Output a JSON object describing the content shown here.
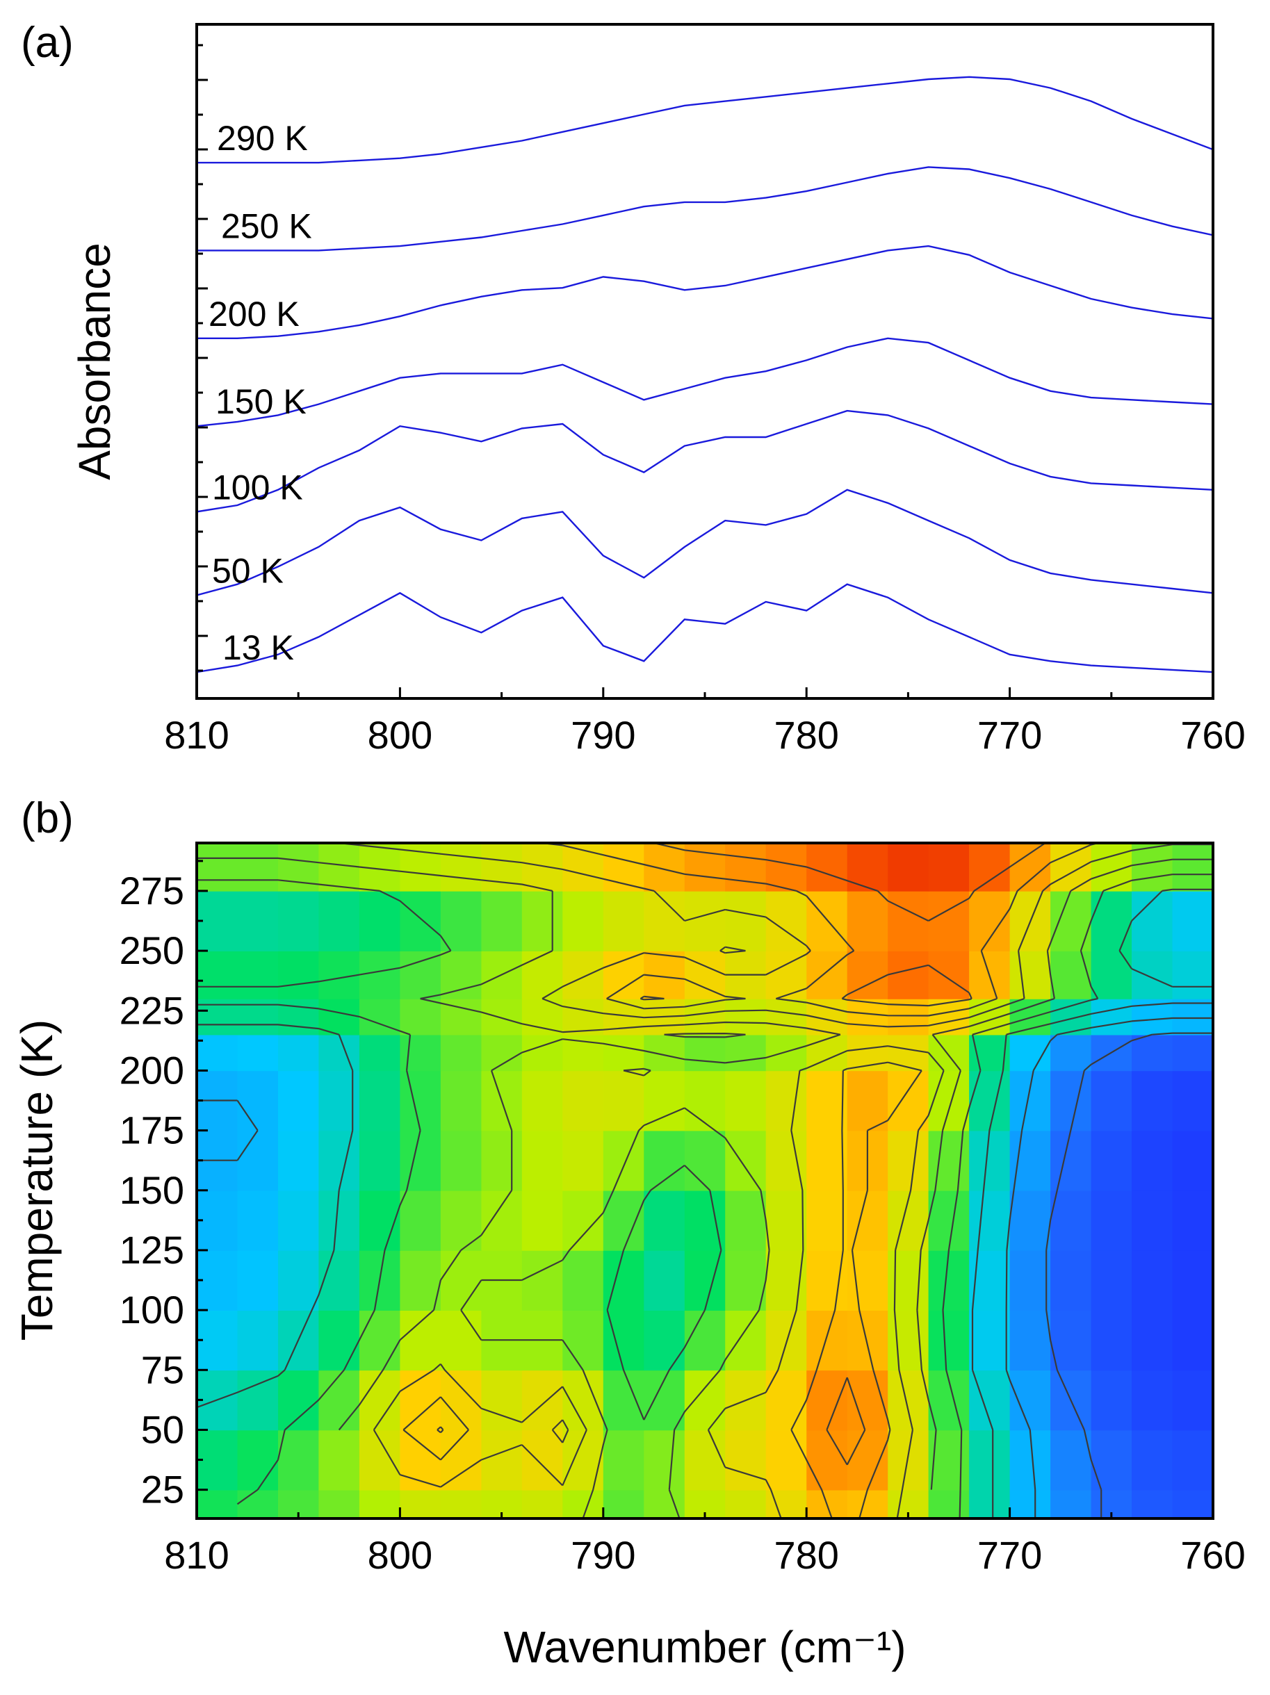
{
  "chart_data": [
    {
      "panel": "(a)",
      "type": "line",
      "xlabel": "",
      "ylabel": "Absorbance",
      "xlim": [
        810,
        760
      ],
      "x_ticks": [
        810,
        800,
        790,
        780,
        770,
        760
      ],
      "y_ticks_shown": false,
      "x": [
        810,
        808,
        806,
        804,
        802,
        800,
        798,
        796,
        794,
        792,
        790,
        788,
        786,
        784,
        782,
        780,
        778,
        776,
        774,
        772,
        770,
        768,
        766,
        764,
        762,
        760
      ],
      "series": [
        {
          "name": "13 K",
          "label": "13 K",
          "offset": 0.0,
          "values": [
            0.0,
            0.03,
            0.08,
            0.16,
            0.26,
            0.36,
            0.25,
            0.18,
            0.28,
            0.34,
            0.12,
            0.05,
            0.24,
            0.22,
            0.32,
            0.28,
            0.4,
            0.34,
            0.24,
            0.16,
            0.08,
            0.05,
            0.03,
            0.02,
            0.01,
            0.0
          ]
        },
        {
          "name": "50 K",
          "label": "50 K",
          "offset": 0.35,
          "values": [
            0.0,
            0.05,
            0.13,
            0.22,
            0.34,
            0.4,
            0.3,
            0.25,
            0.35,
            0.38,
            0.18,
            0.08,
            0.22,
            0.34,
            0.32,
            0.37,
            0.48,
            0.42,
            0.34,
            0.26,
            0.16,
            0.1,
            0.07,
            0.05,
            0.03,
            0.01
          ]
        },
        {
          "name": "100 K",
          "label": "100 K",
          "offset": 0.73,
          "values": [
            0.0,
            0.03,
            0.1,
            0.2,
            0.28,
            0.39,
            0.36,
            0.32,
            0.38,
            0.4,
            0.26,
            0.18,
            0.3,
            0.34,
            0.34,
            0.4,
            0.46,
            0.44,
            0.38,
            0.3,
            0.22,
            0.16,
            0.13,
            0.12,
            0.11,
            0.1
          ]
        },
        {
          "name": "150 K",
          "label": "150 K",
          "offset": 1.12,
          "values": [
            0.0,
            0.02,
            0.05,
            0.1,
            0.16,
            0.22,
            0.24,
            0.24,
            0.24,
            0.28,
            0.2,
            0.12,
            0.17,
            0.22,
            0.25,
            0.3,
            0.36,
            0.4,
            0.38,
            0.3,
            0.22,
            0.16,
            0.13,
            0.12,
            0.11,
            0.1
          ]
        },
        {
          "name": "200 K",
          "label": "200 K",
          "offset": 1.52,
          "values": [
            0.0,
            0.0,
            0.01,
            0.03,
            0.06,
            0.1,
            0.15,
            0.19,
            0.22,
            0.23,
            0.28,
            0.26,
            0.22,
            0.24,
            0.28,
            0.32,
            0.36,
            0.4,
            0.42,
            0.38,
            0.3,
            0.24,
            0.18,
            0.14,
            0.11,
            0.09
          ]
        },
        {
          "name": "250 K",
          "label": "250 K",
          "offset": 1.92,
          "values": [
            0.0,
            0.0,
            0.0,
            0.0,
            0.01,
            0.02,
            0.04,
            0.06,
            0.09,
            0.12,
            0.16,
            0.2,
            0.22,
            0.22,
            0.24,
            0.27,
            0.31,
            0.35,
            0.38,
            0.37,
            0.33,
            0.28,
            0.22,
            0.16,
            0.11,
            0.07
          ]
        },
        {
          "name": "290 K",
          "label": "290 K",
          "offset": 2.32,
          "values": [
            0.0,
            0.0,
            0.0,
            0.0,
            0.01,
            0.02,
            0.04,
            0.07,
            0.1,
            0.14,
            0.18,
            0.22,
            0.26,
            0.28,
            0.3,
            0.32,
            0.34,
            0.36,
            0.38,
            0.39,
            0.38,
            0.34,
            0.28,
            0.2,
            0.13,
            0.06
          ]
        }
      ]
    },
    {
      "panel": "(b)",
      "type": "heatmap",
      "xlabel": "Wavenumber (cm⁻¹)",
      "ylabel": "Temperature (K)",
      "xlim": [
        810,
        760
      ],
      "ylim": [
        13,
        295
      ],
      "x_ticks": [
        810,
        800,
        790,
        780,
        770,
        760
      ],
      "y_ticks": [
        25,
        50,
        75,
        100,
        125,
        150,
        175,
        200,
        225,
        250,
        275
      ],
      "colormap": [
        "#1c1cff",
        "#1e6bff",
        "#00c8ff",
        "#00e060",
        "#b8f000",
        "#ffd000",
        "#ff7000",
        "#e00000"
      ],
      "x": [
        810,
        808,
        806,
        804,
        802,
        800,
        798,
        796,
        794,
        792,
        790,
        788,
        786,
        784,
        782,
        780,
        778,
        776,
        774,
        772,
        770,
        768,
        766,
        764,
        762,
        760
      ],
      "y": [
        13,
        25,
        50,
        75,
        100,
        125,
        150,
        175,
        200,
        215,
        230,
        250,
        275,
        295
      ],
      "z": [
        [
          0.45,
          0.46,
          0.48,
          0.5,
          0.52,
          0.58,
          0.6,
          0.58,
          0.58,
          0.6,
          0.5,
          0.48,
          0.56,
          0.6,
          0.62,
          0.7,
          0.78,
          0.68,
          0.55,
          0.42,
          0.3,
          0.22,
          0.16,
          0.12,
          0.1,
          0.1
        ],
        [
          0.42,
          0.44,
          0.46,
          0.5,
          0.55,
          0.62,
          0.64,
          0.6,
          0.62,
          0.64,
          0.52,
          0.5,
          0.58,
          0.62,
          0.64,
          0.72,
          0.8,
          0.7,
          0.56,
          0.42,
          0.3,
          0.22,
          0.16,
          0.12,
          0.1,
          0.1
        ],
        [
          0.38,
          0.4,
          0.44,
          0.5,
          0.6,
          0.74,
          0.86,
          0.7,
          0.66,
          0.78,
          0.56,
          0.46,
          0.58,
          0.7,
          0.7,
          0.78,
          0.92,
          0.76,
          0.58,
          0.42,
          0.3,
          0.2,
          0.14,
          0.1,
          0.08,
          0.08
        ],
        [
          0.3,
          0.32,
          0.34,
          0.4,
          0.48,
          0.6,
          0.66,
          0.56,
          0.58,
          0.6,
          0.5,
          0.4,
          0.48,
          0.56,
          0.62,
          0.72,
          0.84,
          0.7,
          0.52,
          0.36,
          0.24,
          0.16,
          0.1,
          0.08,
          0.06,
          0.06
        ],
        [
          0.28,
          0.28,
          0.3,
          0.36,
          0.42,
          0.5,
          0.56,
          0.54,
          0.52,
          0.5,
          0.46,
          0.36,
          0.4,
          0.5,
          0.56,
          0.68,
          0.78,
          0.68,
          0.5,
          0.36,
          0.24,
          0.14,
          0.1,
          0.08,
          0.06,
          0.06
        ],
        [
          0.26,
          0.26,
          0.28,
          0.32,
          0.4,
          0.48,
          0.54,
          0.56,
          0.58,
          0.56,
          0.5,
          0.4,
          0.36,
          0.46,
          0.54,
          0.66,
          0.76,
          0.68,
          0.52,
          0.38,
          0.24,
          0.14,
          0.1,
          0.08,
          0.06,
          0.06
        ],
        [
          0.26,
          0.26,
          0.28,
          0.32,
          0.38,
          0.44,
          0.5,
          0.52,
          0.56,
          0.6,
          0.58,
          0.46,
          0.4,
          0.48,
          0.56,
          0.66,
          0.76,
          0.74,
          0.58,
          0.4,
          0.26,
          0.16,
          0.1,
          0.08,
          0.06,
          0.06
        ],
        [
          0.24,
          0.24,
          0.26,
          0.3,
          0.36,
          0.42,
          0.48,
          0.52,
          0.56,
          0.6,
          0.62,
          0.54,
          0.52,
          0.56,
          0.6,
          0.68,
          0.76,
          0.74,
          0.62,
          0.42,
          0.28,
          0.18,
          0.12,
          0.08,
          0.06,
          0.06
        ],
        [
          0.26,
          0.26,
          0.28,
          0.3,
          0.36,
          0.44,
          0.5,
          0.54,
          0.58,
          0.62,
          0.64,
          0.66,
          0.6,
          0.58,
          0.6,
          0.66,
          0.76,
          0.8,
          0.74,
          0.5,
          0.32,
          0.2,
          0.14,
          0.1,
          0.08,
          0.08
        ],
        [
          0.3,
          0.3,
          0.3,
          0.32,
          0.38,
          0.44,
          0.48,
          0.5,
          0.52,
          0.54,
          0.52,
          0.46,
          0.44,
          0.44,
          0.46,
          0.5,
          0.56,
          0.58,
          0.56,
          0.46,
          0.34,
          0.26,
          0.2,
          0.16,
          0.14,
          0.14
        ],
        [
          0.48,
          0.48,
          0.48,
          0.5,
          0.52,
          0.54,
          0.56,
          0.58,
          0.62,
          0.68,
          0.74,
          0.86,
          0.84,
          0.76,
          0.74,
          0.78,
          0.86,
          0.9,
          0.92,
          0.86,
          0.7,
          0.56,
          0.46,
          0.4,
          0.38,
          0.38
        ],
        [
          0.36,
          0.36,
          0.36,
          0.36,
          0.38,
          0.4,
          0.44,
          0.48,
          0.52,
          0.56,
          0.6,
          0.64,
          0.62,
          0.54,
          0.56,
          0.64,
          0.74,
          0.8,
          0.82,
          0.78,
          0.68,
          0.54,
          0.42,
          0.32,
          0.26,
          0.26
        ],
        [
          0.4,
          0.4,
          0.4,
          0.42,
          0.44,
          0.46,
          0.48,
          0.5,
          0.52,
          0.56,
          0.6,
          0.64,
          0.68,
          0.7,
          0.72,
          0.76,
          0.82,
          0.86,
          0.88,
          0.86,
          0.78,
          0.62,
          0.48,
          0.38,
          0.34,
          0.34
        ],
        [
          0.62,
          0.62,
          0.62,
          0.64,
          0.66,
          0.68,
          0.7,
          0.72,
          0.74,
          0.76,
          0.8,
          0.84,
          0.88,
          0.9,
          0.92,
          0.94,
          0.96,
          0.98,
          0.98,
          0.96,
          0.92,
          0.84,
          0.76,
          0.7,
          0.66,
          0.66
        ]
      ]
    }
  ]
}
